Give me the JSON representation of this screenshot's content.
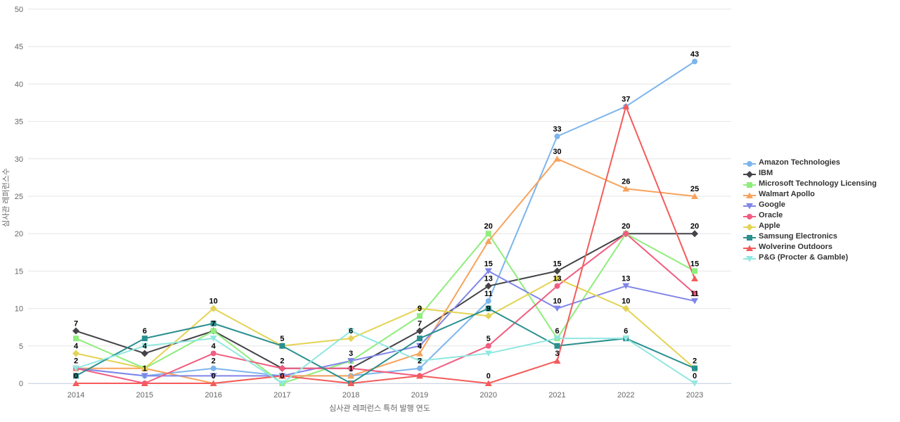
{
  "chart_data": {
    "type": "line",
    "title": "",
    "xlabel": "심사관 레퍼런스 특허 발행 연도",
    "ylabel": "심사관 레퍼런스수",
    "x": [
      2014,
      2015,
      2016,
      2017,
      2018,
      2019,
      2020,
      2021,
      2022,
      2023
    ],
    "ylim": [
      0,
      50
    ],
    "ytick_step": 5,
    "grid": true,
    "legend_position": "right",
    "colors": {
      "grid": "#e6e6e6",
      "axis_line": "#ccd6eb",
      "tick_label": "#666666",
      "data_label": "#000000",
      "legend_text": "#333333"
    },
    "series": [
      {
        "name": "Amazon Technologies",
        "color": "#7cb5ec",
        "marker": "circle",
        "values": [
          2,
          1,
          2,
          1,
          1,
          2,
          11,
          33,
          37,
          43
        ],
        "labels_shown": [
          0,
          1,
          1,
          0,
          0,
          1,
          1,
          1,
          0,
          1
        ]
      },
      {
        "name": "IBM",
        "color": "#434348",
        "marker": "diamond",
        "values": [
          7,
          4,
          7,
          2,
          2,
          7,
          13,
          15,
          20,
          20
        ],
        "labels_shown": [
          1,
          1,
          0,
          1,
          0,
          1,
          1,
          1,
          1,
          1
        ]
      },
      {
        "name": "Microsoft Technology Licensing",
        "color": "#90ed7d",
        "marker": "square",
        "values": [
          6,
          2,
          7,
          0,
          3,
          9,
          20,
          6,
          20,
          15
        ],
        "labels_shown": [
          0,
          0,
          1,
          0,
          0,
          1,
          1,
          1,
          0,
          1
        ]
      },
      {
        "name": "Walmart Apollo",
        "color": "#f7a35c",
        "marker": "triangle",
        "values": [
          2,
          2,
          0,
          1,
          1,
          4,
          19,
          30,
          26,
          25
        ],
        "labels_shown": [
          0,
          0,
          0,
          0,
          1,
          1,
          0,
          1,
          1,
          1
        ]
      },
      {
        "name": "Google",
        "color": "#8085e9",
        "marker": "triangle-down",
        "values": [
          2,
          1,
          1,
          1,
          3,
          5,
          15,
          10,
          13,
          11
        ],
        "labels_shown": [
          0,
          0,
          0,
          0,
          1,
          0,
          1,
          1,
          1,
          1
        ]
      },
      {
        "name": "Oracle",
        "color": "#f15c80",
        "marker": "circle",
        "values": [
          2,
          0,
          4,
          2,
          2,
          1,
          5,
          13,
          20,
          12
        ],
        "labels_shown": [
          0,
          0,
          1,
          0,
          0,
          0,
          1,
          1,
          0,
          0
        ]
      },
      {
        "name": "Apple",
        "color": "#e4d354",
        "marker": "diamond",
        "values": [
          4,
          2,
          10,
          5,
          6,
          10,
          9,
          14,
          10,
          2
        ],
        "labels_shown": [
          1,
          0,
          1,
          0,
          1,
          0,
          1,
          0,
          1,
          0
        ]
      },
      {
        "name": "Samsung Electronics",
        "color": "#2b908f",
        "marker": "square",
        "values": [
          1,
          6,
          8,
          5,
          0,
          6,
          10,
          5,
          6,
          2
        ],
        "labels_shown": [
          0,
          1,
          0,
          1,
          0,
          0,
          0,
          0,
          1,
          1
        ]
      },
      {
        "name": "Wolverine Outdoors",
        "color": "#f45b5b",
        "marker": "triangle",
        "values": [
          0,
          0,
          0,
          1,
          0,
          1,
          0,
          3,
          37,
          14
        ],
        "labels_shown": [
          1,
          0,
          1,
          0,
          0,
          0,
          1,
          1,
          1,
          0
        ]
      },
      {
        "name": "P&G (Procter & Gamble)",
        "color": "#91e8e1",
        "marker": "triangle-down",
        "values": [
          2,
          5,
          6,
          0,
          7,
          3,
          4,
          6,
          6,
          0
        ],
        "labels_shown": [
          1,
          0,
          0,
          1,
          0,
          0,
          0,
          0,
          0,
          1
        ]
      }
    ]
  }
}
